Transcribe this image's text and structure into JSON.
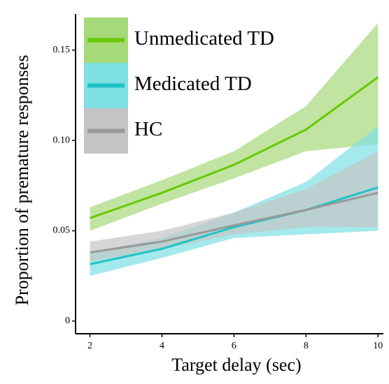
{
  "chart_data": {
    "type": "line",
    "xlabel": "Target delay (sec)",
    "ylabel": "Proportion of premature responses",
    "x": [
      2,
      4,
      6,
      8,
      10
    ],
    "xlim": [
      1.6,
      10.15
    ],
    "xticks": [
      2,
      4,
      6,
      8,
      10
    ],
    "ylim": [
      -0.007,
      0.17
    ],
    "yticks": [
      0,
      0.05,
      {
        "value": 0.1,
        "label": "0.10"
      },
      0.15
    ],
    "legend": "upper left",
    "series": [
      {
        "name": "Unmedicated TD",
        "color": "#66c800",
        "band_color": "#a6d97a",
        "values": [
          0.057,
          0.071,
          0.0865,
          0.106,
          0.135
        ],
        "lower": [
          0.05,
          0.065,
          0.079,
          0.094,
          0.098
        ],
        "upper": [
          0.063,
          0.078,
          0.094,
          0.119,
          0.165
        ]
      },
      {
        "name": "Medicated TD",
        "color": "#1ec3c8",
        "band_color": "#7ee0e4",
        "values": [
          0.0315,
          0.04,
          0.052,
          0.0615,
          0.074
        ],
        "lower": [
          0.025,
          0.035,
          0.046,
          0.048,
          0.05
        ],
        "upper": [
          0.038,
          0.046,
          0.06,
          0.077,
          0.108
        ]
      },
      {
        "name": "HC",
        "color": "#999999",
        "band_color": "#c4c4c4",
        "values": [
          0.038,
          0.044,
          0.053,
          0.0615,
          0.071
        ],
        "lower": [
          0.033,
          0.04,
          0.048,
          0.052,
          0.052
        ],
        "upper": [
          0.044,
          0.05,
          0.06,
          0.073,
          0.094
        ]
      }
    ]
  }
}
